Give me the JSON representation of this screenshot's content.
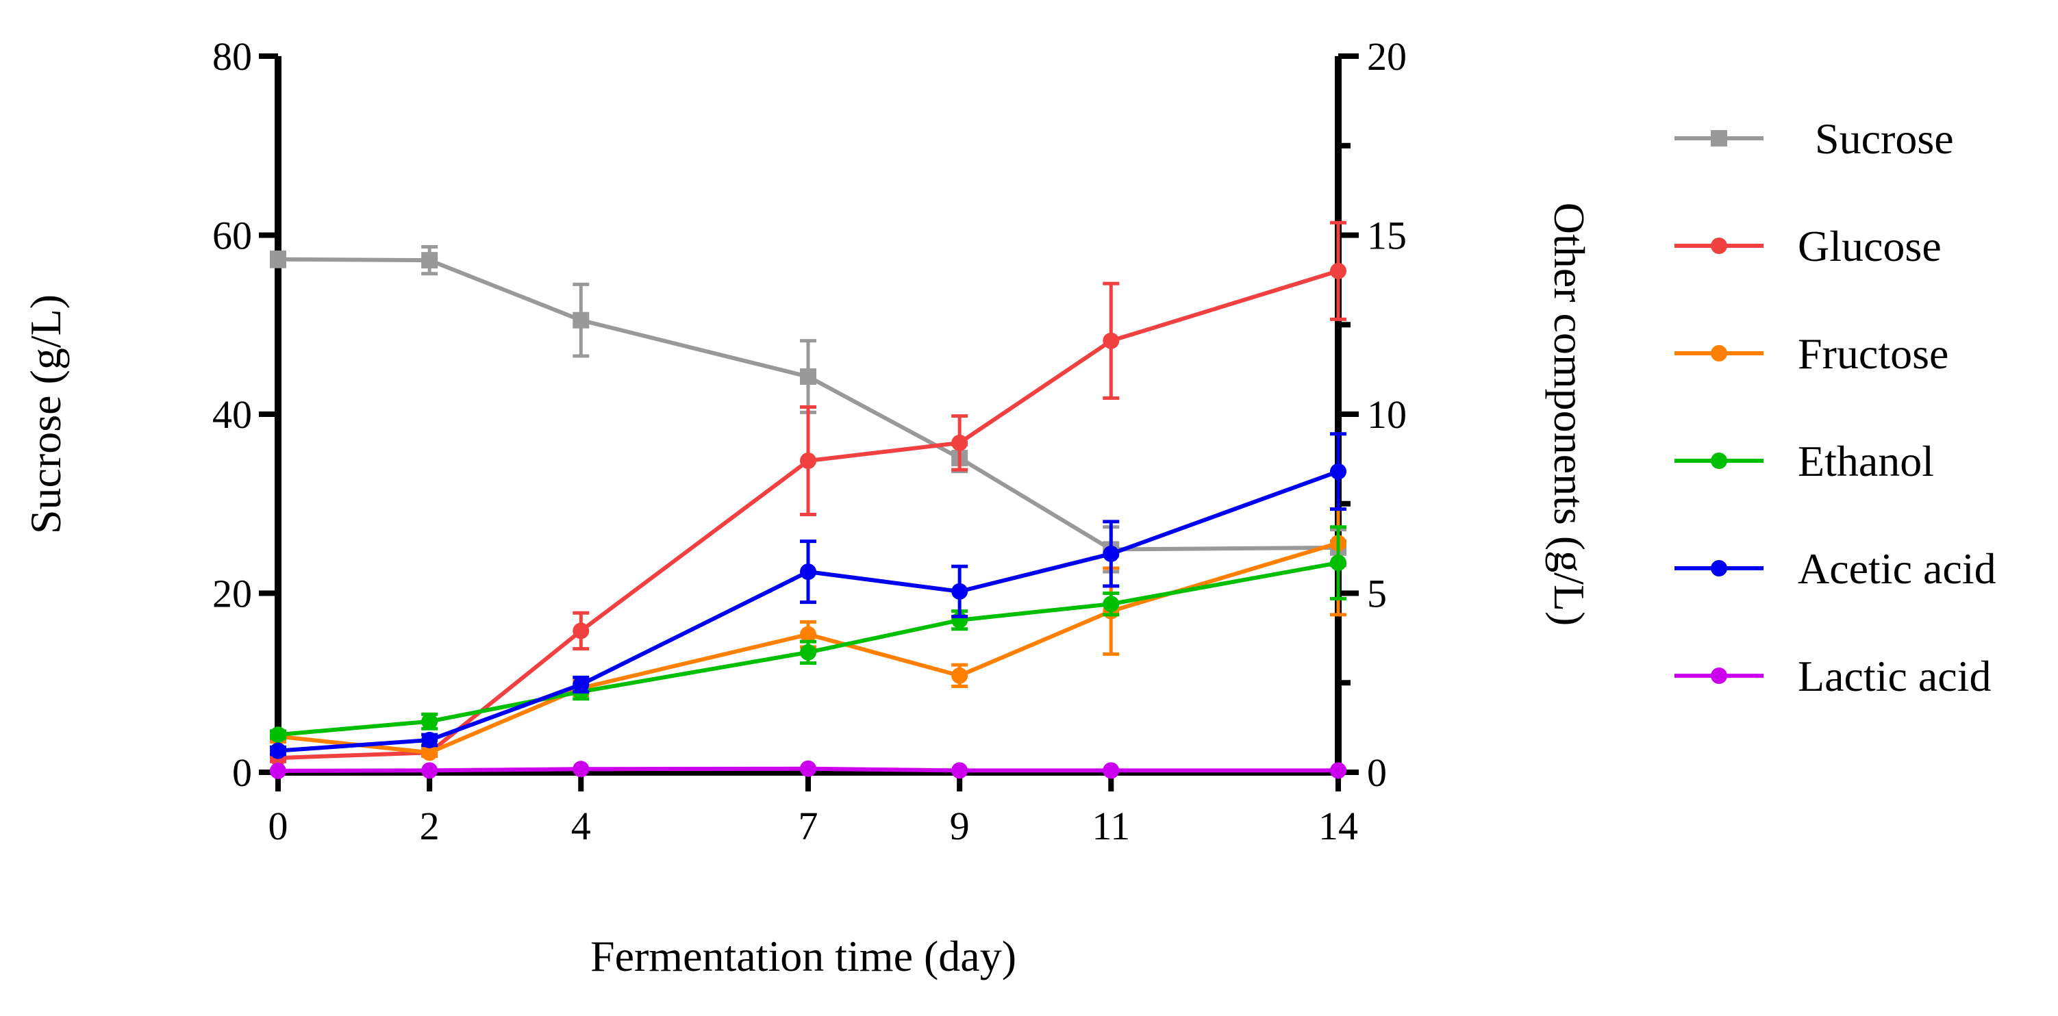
{
  "chart_data": {
    "type": "line",
    "x": [
      0,
      2,
      4,
      7,
      9,
      11,
      14
    ],
    "xlabel": "Fermentation time (day)",
    "ylabel_left": "Sucrose (g/L)",
    "ylabel_right": "Other components (g/L)",
    "ylim_left": [
      0,
      80
    ],
    "ylim_right": [
      0,
      20
    ],
    "yticks_left": [
      0,
      20,
      40,
      60,
      80
    ],
    "yticks_right": [
      0,
      5,
      10,
      15,
      20
    ],
    "xticks": [
      0,
      2,
      4,
      7,
      9,
      11,
      14
    ],
    "series": [
      {
        "name": "Sucrose",
        "axis": "left",
        "color": "#999999",
        "marker": "square",
        "values": [
          57.3,
          57.2,
          50.5,
          44.2,
          35.1,
          24.9,
          25.1
        ],
        "errors": [
          0.8,
          1.5,
          4.0,
          4.0,
          1.5,
          2.5,
          2.0
        ]
      },
      {
        "name": "Glucose",
        "axis": "right",
        "color": "#f04040",
        "marker": "circle",
        "values": [
          0.4,
          0.55,
          3.95,
          8.7,
          9.2,
          12.05,
          14.0
        ],
        "errors": [
          0.1,
          0.1,
          0.5,
          1.5,
          0.75,
          1.6,
          1.35
        ]
      },
      {
        "name": "Fructose",
        "axis": "right",
        "color": "#ff8000",
        "marker": "circle",
        "values": [
          1.0,
          0.55,
          2.35,
          3.85,
          2.7,
          4.5,
          6.4
        ],
        "errors": [
          0.15,
          0.1,
          0.2,
          0.35,
          0.3,
          1.2,
          2.0
        ]
      },
      {
        "name": "Ethanol",
        "axis": "right",
        "color": "#00bf00",
        "marker": "circle",
        "values": [
          1.05,
          1.42,
          2.25,
          3.35,
          4.25,
          4.7,
          5.85
        ],
        "errors": [
          0.1,
          0.2,
          0.2,
          0.3,
          0.25,
          0.3,
          1.0
        ]
      },
      {
        "name": "Acetic acid",
        "axis": "right",
        "color": "#0000f0",
        "marker": "circle",
        "values": [
          0.6,
          0.9,
          2.45,
          5.6,
          5.05,
          6.1,
          8.4
        ],
        "errors": [
          0.1,
          0.15,
          0.2,
          0.85,
          0.7,
          0.9,
          1.05
        ]
      },
      {
        "name": "Lactic acid",
        "axis": "right",
        "color": "#cc00ee",
        "marker": "circle",
        "values": [
          0.04,
          0.05,
          0.09,
          0.1,
          0.05,
          0.05,
          0.05
        ],
        "errors": [
          0.01,
          0.01,
          0.01,
          0.01,
          0.01,
          0.01,
          0.01
        ]
      }
    ],
    "legend_position": "right"
  }
}
